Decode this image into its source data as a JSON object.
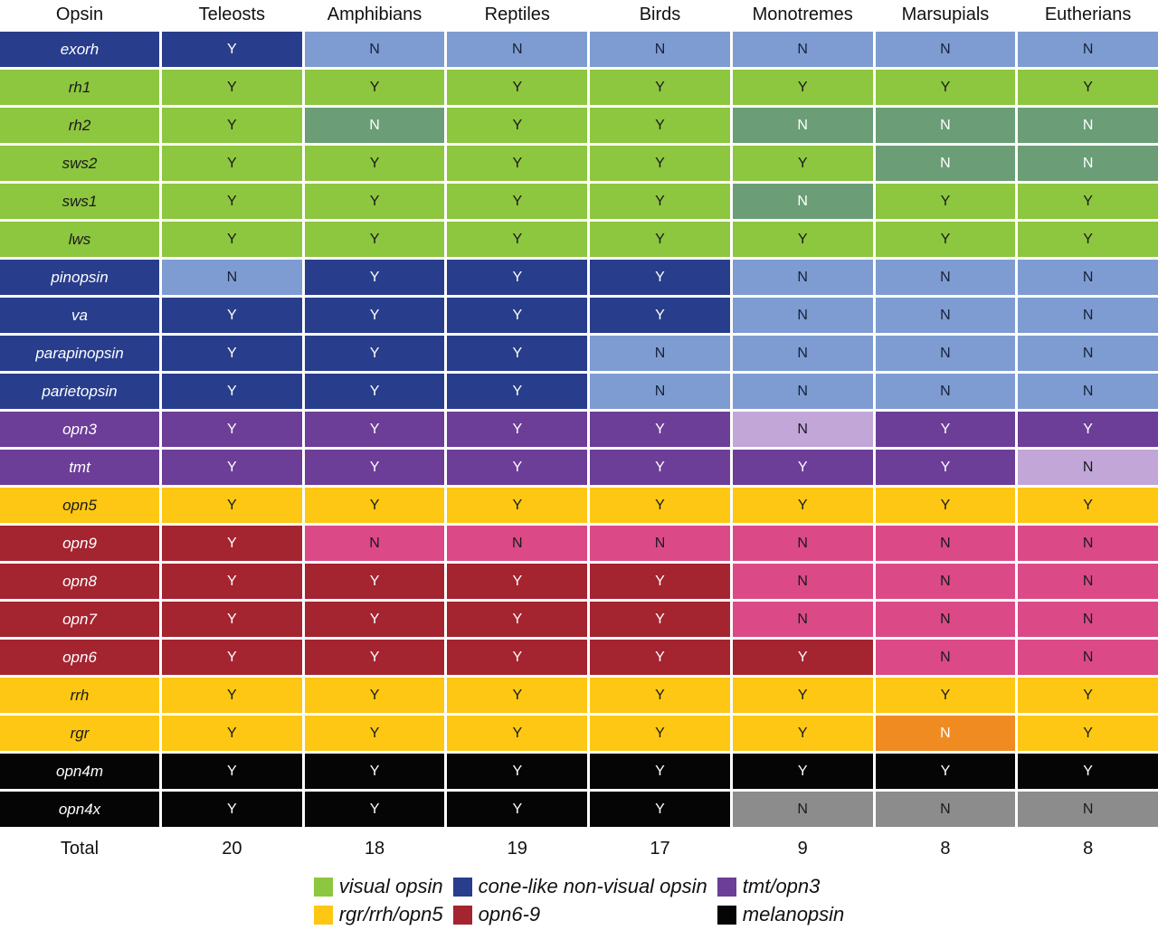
{
  "figure": {
    "total_label": "Total"
  },
  "palette": {
    "visual": {
      "label_bg": "#8DC63F",
      "label_fg": "#1A1A1A",
      "y_bg": "#8DC63F",
      "y_fg": "#1A1A1A",
      "n_bg": "#6B9E77",
      "n_fg": "#FFFFFF"
    },
    "cone": {
      "label_bg": "#283E8C",
      "label_fg": "#FFFFFF",
      "y_bg": "#283E8C",
      "y_fg": "#FFFFFF",
      "n_bg": "#7E9CD1",
      "n_fg": "#16213A"
    },
    "tmt_opn3": {
      "label_bg": "#6C3E98",
      "label_fg": "#FFFFFF",
      "y_bg": "#6C3E98",
      "y_fg": "#FFFFFF",
      "n_bg": "#C2A6D8",
      "n_fg": "#1A1A1A"
    },
    "rgr_rrh_opn5": {
      "label_bg": "#FDC713",
      "label_fg": "#1A1A1A",
      "y_bg": "#FDC713",
      "y_fg": "#1A1A1A",
      "n_bg": "#F08B22",
      "n_fg": "#FFFFFF"
    },
    "opn6_9": {
      "label_bg": "#A42430",
      "label_fg": "#FFFFFF",
      "y_bg": "#A42430",
      "y_fg": "#FFFFFF",
      "n_bg": "#DB4A87",
      "n_fg": "#1A1A1A"
    },
    "melanopsin": {
      "label_bg": "#050505",
      "label_fg": "#FFFFFF",
      "y_bg": "#050505",
      "y_fg": "#FFFFFF",
      "n_bg": "#8C8C8C",
      "n_fg": "#1A1A1A"
    }
  },
  "chart_data": {
    "type": "table",
    "title": "",
    "columns": [
      "Opsin",
      "Teleosts",
      "Amphibians",
      "Reptiles",
      "Birds",
      "Monotremes",
      "Marsupials",
      "Eutherians"
    ],
    "value_meaning": {
      "Y": "present",
      "N": "absent"
    },
    "rows": [
      {
        "opsin": "exorh",
        "group": "cone",
        "values": [
          "Y",
          "N",
          "N",
          "N",
          "N",
          "N",
          "N"
        ]
      },
      {
        "opsin": "rh1",
        "group": "visual",
        "values": [
          "Y",
          "Y",
          "Y",
          "Y",
          "Y",
          "Y",
          "Y"
        ]
      },
      {
        "opsin": "rh2",
        "group": "visual",
        "values": [
          "Y",
          "N",
          "Y",
          "Y",
          "N",
          "N",
          "N"
        ]
      },
      {
        "opsin": "sws2",
        "group": "visual",
        "values": [
          "Y",
          "Y",
          "Y",
          "Y",
          "Y",
          "N",
          "N"
        ]
      },
      {
        "opsin": "sws1",
        "group": "visual",
        "values": [
          "Y",
          "Y",
          "Y",
          "Y",
          "N",
          "Y",
          "Y"
        ]
      },
      {
        "opsin": "lws",
        "group": "visual",
        "values": [
          "Y",
          "Y",
          "Y",
          "Y",
          "Y",
          "Y",
          "Y"
        ]
      },
      {
        "opsin": "pinopsin",
        "group": "cone",
        "values": [
          "N",
          "Y",
          "Y",
          "Y",
          "N",
          "N",
          "N"
        ]
      },
      {
        "opsin": "va",
        "group": "cone",
        "values": [
          "Y",
          "Y",
          "Y",
          "Y",
          "N",
          "N",
          "N"
        ]
      },
      {
        "opsin": "parapinopsin",
        "group": "cone",
        "values": [
          "Y",
          "Y",
          "Y",
          "N",
          "N",
          "N",
          "N"
        ]
      },
      {
        "opsin": "parietopsin",
        "group": "cone",
        "values": [
          "Y",
          "Y",
          "Y",
          "N",
          "N",
          "N",
          "N"
        ]
      },
      {
        "opsin": "opn3",
        "group": "tmt_opn3",
        "values": [
          "Y",
          "Y",
          "Y",
          "Y",
          "N",
          "Y",
          "Y"
        ]
      },
      {
        "opsin": "tmt",
        "group": "tmt_opn3",
        "values": [
          "Y",
          "Y",
          "Y",
          "Y",
          "Y",
          "Y",
          "N"
        ]
      },
      {
        "opsin": "opn5",
        "group": "rgr_rrh_opn5",
        "values": [
          "Y",
          "Y",
          "Y",
          "Y",
          "Y",
          "Y",
          "Y"
        ]
      },
      {
        "opsin": "opn9",
        "group": "opn6_9",
        "values": [
          "Y",
          "N",
          "N",
          "N",
          "N",
          "N",
          "N"
        ]
      },
      {
        "opsin": "opn8",
        "group": "opn6_9",
        "values": [
          "Y",
          "Y",
          "Y",
          "Y",
          "N",
          "N",
          "N"
        ]
      },
      {
        "opsin": "opn7",
        "group": "opn6_9",
        "values": [
          "Y",
          "Y",
          "Y",
          "Y",
          "N",
          "N",
          "N"
        ]
      },
      {
        "opsin": "opn6",
        "group": "opn6_9",
        "values": [
          "Y",
          "Y",
          "Y",
          "Y",
          "Y",
          "N",
          "N"
        ]
      },
      {
        "opsin": "rrh",
        "group": "rgr_rrh_opn5",
        "values": [
          "Y",
          "Y",
          "Y",
          "Y",
          "Y",
          "Y",
          "Y"
        ]
      },
      {
        "opsin": "rgr",
        "group": "rgr_rrh_opn5",
        "values": [
          "Y",
          "Y",
          "Y",
          "Y",
          "Y",
          "N",
          "Y"
        ]
      },
      {
        "opsin": "opn4m",
        "group": "melanopsin",
        "values": [
          "Y",
          "Y",
          "Y",
          "Y",
          "Y",
          "Y",
          "Y"
        ]
      },
      {
        "opsin": "opn4x",
        "group": "melanopsin",
        "values": [
          "Y",
          "Y",
          "Y",
          "Y",
          "N",
          "N",
          "N"
        ]
      }
    ],
    "totals": [
      "20",
      "18",
      "19",
      "17",
      "9",
      "8",
      "8"
    ],
    "legend_columns": [
      [
        {
          "label": "visual opsin",
          "group": "visual"
        },
        {
          "label": "rgr/rrh/opn5",
          "group": "rgr_rrh_opn5"
        }
      ],
      [
        {
          "label": "cone-like non-visual opsin",
          "group": "cone"
        },
        {
          "label": "opn6-9",
          "group": "opn6_9"
        }
      ],
      [
        {
          "label": "tmt/opn3",
          "group": "tmt_opn3"
        },
        {
          "label": "melanopsin",
          "group": "melanopsin"
        }
      ]
    ],
    "legend_position": "bottom-center",
    "grid": false
  }
}
